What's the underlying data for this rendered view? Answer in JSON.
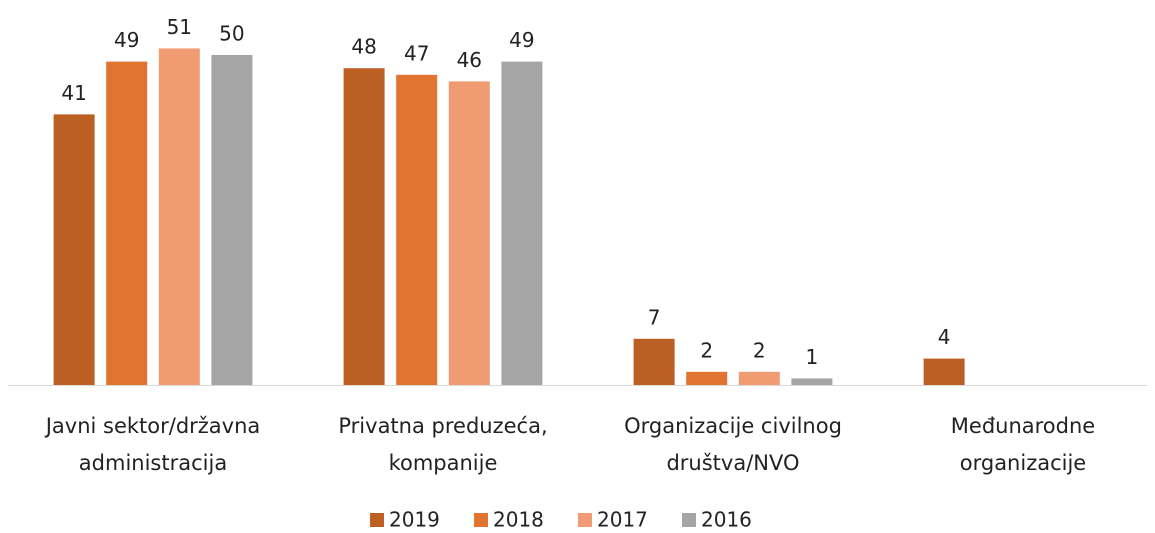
{
  "chart_data": {
    "type": "bar",
    "categories": [
      "Javni sektor/državna administracija",
      "Privatna preduzeća, kompanije",
      "Organizacije civilnog društva/NVO",
      "Međunarodne organizacije"
    ],
    "series": [
      {
        "name": "2019",
        "color": "#bc5f23",
        "values": [
          41,
          48,
          7,
          4
        ]
      },
      {
        "name": "2018",
        "color": "#e07430",
        "values": [
          49,
          47,
          2,
          null
        ]
      },
      {
        "name": "2017",
        "color": "#f09b72",
        "values": [
          51,
          46,
          2,
          null
        ]
      },
      {
        "name": "2016",
        "color": "#a5a5a5",
        "values": [
          50,
          49,
          1,
          null
        ]
      }
    ],
    "legend": "bottom"
  }
}
